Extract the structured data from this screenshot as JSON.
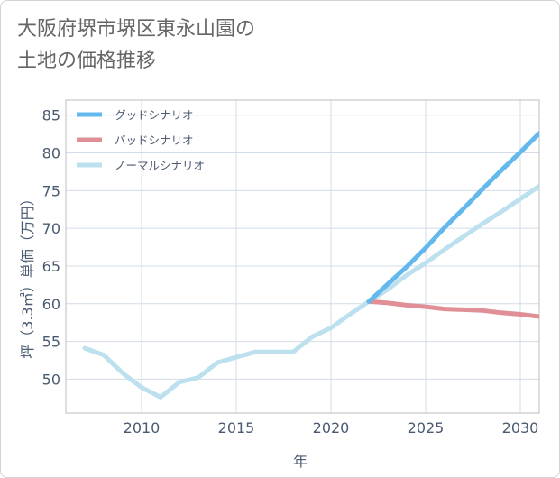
{
  "title": {
    "line1": "大阪府堺市堺区東永山園の",
    "line2": "土地の価格推移"
  },
  "chart_data": {
    "type": "line",
    "title": "大阪府堺市堺区東永山園の土地の価格推移",
    "xlabel": "年",
    "ylabel": "坪（3.3㎡）単価（万円）",
    "xlim": [
      2006,
      2031
    ],
    "ylim": [
      45.5,
      87
    ],
    "xticks": [
      2010,
      2015,
      2020,
      2025,
      2030
    ],
    "yticks": [
      50,
      55,
      60,
      65,
      70,
      75,
      80,
      85
    ],
    "grid": true,
    "legend_position": "top-left",
    "series": [
      {
        "name": "グッドシナリオ",
        "color": "#63b8ec",
        "x": [
          2022,
          2023,
          2024,
          2025,
          2026,
          2027,
          2028,
          2029,
          2030,
          2031
        ],
        "y": [
          60.3,
          62.6,
          64.9,
          67.4,
          70.1,
          72.6,
          75.2,
          77.7,
          80.1,
          82.6
        ]
      },
      {
        "name": "バッドシナリオ",
        "color": "#df8f95",
        "x": [
          2022,
          2023,
          2024,
          2025,
          2026,
          2027,
          2028,
          2029,
          2030,
          2031
        ],
        "y": [
          60.3,
          60.1,
          59.8,
          59.6,
          59.3,
          59.2,
          59.1,
          58.8,
          58.6,
          58.3
        ]
      },
      {
        "name": "ノーマルシナリオ",
        "color": "#bde0ee",
        "x": [
          2007,
          2008,
          2009,
          2010,
          2011,
          2012,
          2013,
          2014,
          2015,
          2016,
          2017,
          2018,
          2019,
          2020,
          2021,
          2022,
          2023,
          2024,
          2025,
          2026,
          2027,
          2028,
          2029,
          2030,
          2031
        ],
        "y": [
          54.1,
          53.2,
          50.8,
          48.9,
          47.6,
          49.6,
          50.2,
          52.2,
          52.9,
          53.6,
          53.6,
          53.6,
          55.6,
          56.8,
          58.6,
          60.3,
          61.9,
          63.8,
          65.4,
          67.2,
          68.9,
          70.6,
          72.2,
          73.9,
          75.6
        ]
      }
    ]
  }
}
